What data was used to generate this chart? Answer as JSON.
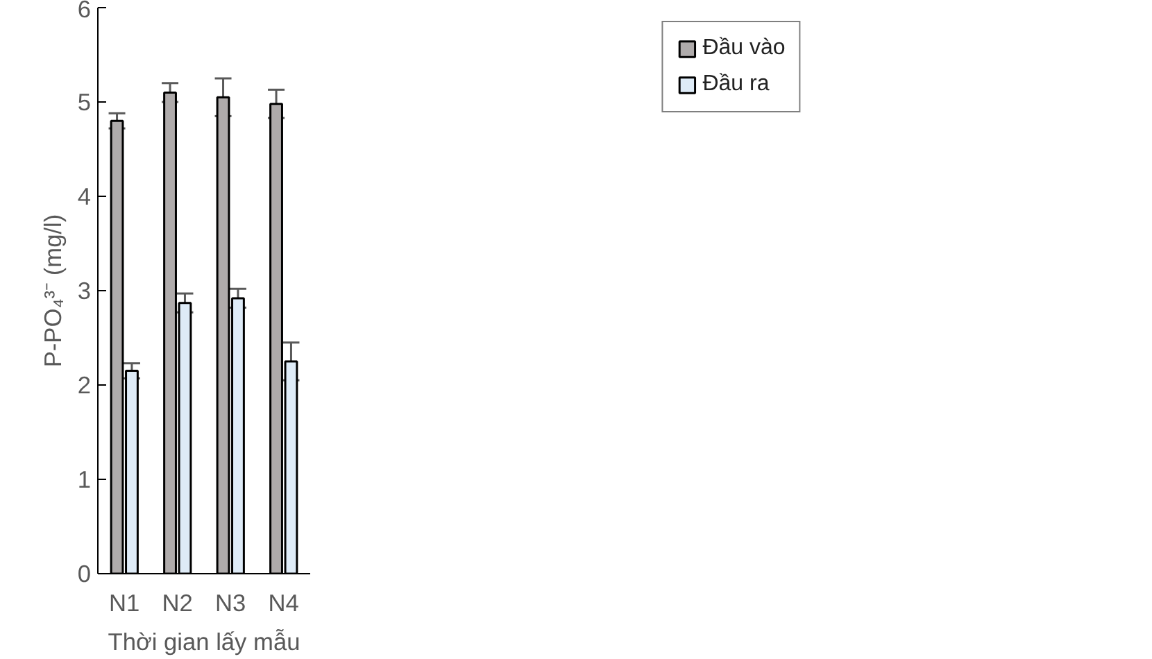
{
  "chart_data": {
    "type": "bar",
    "xlabel": "Thời gian lấy mẫu",
    "ylabel": "P-PO₄³⁻ (mg/l)",
    "categories": [
      "N1",
      "N2",
      "N3",
      "N4"
    ],
    "series": [
      {
        "name": "Đầu vào",
        "color": "#afabab",
        "values": [
          4.8,
          5.1,
          5.05,
          4.98
        ],
        "errors": [
          0.08,
          0.1,
          0.2,
          0.15
        ]
      },
      {
        "name": "Đầu ra",
        "color": "#deebf7",
        "values": [
          2.15,
          2.87,
          2.92,
          2.25
        ],
        "errors": [
          0.08,
          0.1,
          0.1,
          0.2
        ]
      }
    ],
    "ylim": [
      0,
      6
    ],
    "yticks": [
      0,
      1,
      2,
      3,
      4,
      5,
      6
    ],
    "grid": false,
    "legend": "top right"
  }
}
